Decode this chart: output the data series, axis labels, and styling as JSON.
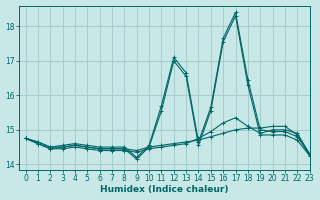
{
  "xlabel": "Humidex (Indice chaleur)",
  "background_color": "#c8e8e8",
  "grid_color": "#a8cccc",
  "line_color": "#006666",
  "xlim": [
    -0.5,
    23
  ],
  "ylim": [
    13.85,
    18.6
  ],
  "yticks": [
    14,
    15,
    16,
    17,
    18
  ],
  "xticks": [
    0,
    1,
    2,
    3,
    4,
    5,
    6,
    7,
    8,
    9,
    10,
    11,
    12,
    13,
    14,
    15,
    16,
    17,
    18,
    19,
    20,
    21,
    22,
    23
  ],
  "x_values": [
    0,
    1,
    2,
    3,
    4,
    5,
    6,
    7,
    8,
    9,
    10,
    11,
    12,
    13,
    14,
    15,
    16,
    17,
    18,
    19,
    20,
    21,
    22,
    23
  ],
  "series": [
    [
      14.75,
      14.65,
      14.5,
      14.5,
      14.55,
      14.5,
      14.45,
      14.45,
      14.45,
      14.4,
      14.5,
      14.55,
      14.6,
      14.65,
      14.7,
      14.8,
      14.9,
      15.0,
      15.05,
      15.05,
      15.1,
      15.1,
      14.85,
      14.25
    ],
    [
      14.75,
      14.6,
      14.45,
      14.45,
      14.5,
      14.45,
      14.4,
      14.4,
      14.4,
      14.35,
      14.45,
      14.5,
      14.55,
      14.6,
      14.75,
      14.95,
      15.2,
      15.35,
      15.1,
      14.9,
      15.0,
      15.0,
      14.9,
      14.3
    ],
    [
      14.75,
      14.6,
      14.45,
      14.5,
      14.55,
      14.5,
      14.45,
      14.45,
      14.45,
      14.15,
      14.5,
      15.55,
      17.0,
      16.55,
      14.55,
      15.55,
      17.55,
      18.3,
      16.3,
      14.85,
      14.85,
      14.85,
      14.7,
      14.25
    ],
    [
      14.75,
      14.65,
      14.5,
      14.55,
      14.6,
      14.55,
      14.5,
      14.5,
      14.5,
      14.2,
      14.55,
      15.7,
      17.1,
      16.65,
      14.65,
      15.65,
      17.65,
      18.4,
      16.45,
      15.0,
      14.95,
      14.95,
      14.8,
      14.3
    ]
  ]
}
